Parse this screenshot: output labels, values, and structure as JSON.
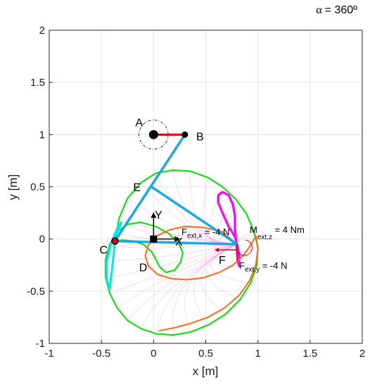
{
  "angle_label": {
    "symbol": "α",
    "value": "= 360º"
  },
  "chart_data": {
    "type": "line",
    "title": "",
    "xlabel": "x [m]",
    "ylabel": "y [m]",
    "xlim": [
      -1,
      2
    ],
    "ylim": [
      -1,
      2
    ],
    "xticks": [
      "-1",
      "-0.5",
      "0",
      "0.5",
      "1",
      "1.5",
      "2"
    ],
    "yticks": [
      "-1",
      "-0.5",
      "0",
      "0.5",
      "1",
      "1.5",
      "2"
    ],
    "grid": true,
    "points": [
      {
        "label": "A",
        "x": 0.0,
        "y": 1.0
      },
      {
        "label": "B",
        "x": 0.3,
        "y": 1.0
      },
      {
        "label": "E",
        "x": -0.02,
        "y": 0.5
      },
      {
        "label": "C",
        "x": -0.37,
        "y": -0.02
      },
      {
        "label": "D",
        "x": 0.05,
        "y": -0.12
      },
      {
        "label": "F",
        "x": 0.8,
        "y": -0.05
      }
    ],
    "frame_labels": {
      "x": "X",
      "y": "Y"
    },
    "annotations": {
      "fext_x": {
        "main": "F",
        "sub": "ext,x",
        "tail": " = -4 N"
      },
      "fext_y": {
        "main": "F",
        "sub": "ext,y",
        "tail": " = -4 N"
      },
      "mext_z": {
        "main": "M",
        "sub": "ext,z",
        "tail": " = 4 Nm"
      }
    },
    "series": [
      {
        "color": "#00e000",
        "x": [
          -0.37,
          -0.33,
          -0.25,
          -0.12,
          0.02,
          0.18,
          0.35,
          0.52,
          0.66,
          0.79,
          0.89,
          0.96,
          1.0,
          0.99,
          0.93,
          0.83,
          0.69,
          0.53,
          0.36,
          0.19,
          0.03,
          -0.12,
          -0.25,
          -0.35,
          -0.42,
          -0.46,
          -0.46,
          -0.42,
          -0.35,
          -0.25,
          -0.12,
          0.02,
          0.15,
          0.24,
          0.28,
          0.26,
          0.2,
          0.12,
          0.06,
          0.02,
          -0.02,
          -0.1,
          -0.2,
          -0.3,
          -0.37
        ],
        "y": [
          -0.02,
          0.2,
          0.39,
          0.54,
          0.63,
          0.66,
          0.65,
          0.59,
          0.5,
          0.38,
          0.24,
          0.08,
          -0.08,
          -0.25,
          -0.42,
          -0.58,
          -0.72,
          -0.82,
          -0.89,
          -0.92,
          -0.91,
          -0.86,
          -0.78,
          -0.66,
          -0.52,
          -0.37,
          -0.2,
          -0.05,
          0.07,
          0.14,
          0.16,
          0.12,
          0.05,
          -0.04,
          -0.13,
          -0.22,
          -0.3,
          -0.32,
          -0.27,
          -0.19,
          -0.12,
          -0.05,
          -0.02,
          -0.01,
          -0.02
        ]
      },
      {
        "color": "#00e5f0",
        "x": [
          -0.37,
          -0.36,
          -0.33,
          -0.31,
          -0.34,
          -0.41,
          -0.45,
          -0.45,
          -0.42,
          -0.39,
          -0.37
        ],
        "y": [
          -0.02,
          0.03,
          0.1,
          0.16,
          0.12,
          -0.05,
          -0.22,
          -0.38,
          -0.48,
          -0.22,
          -0.02
        ]
      },
      {
        "color": "#ff00ff",
        "x": [
          0.8,
          0.78,
          0.72,
          0.66,
          0.62,
          0.62,
          0.66,
          0.72,
          0.76,
          0.78,
          0.78,
          0.79,
          0.8,
          0.81,
          0.82,
          0.82,
          0.8
        ],
        "y": [
          -0.05,
          0.02,
          0.12,
          0.25,
          0.35,
          0.42,
          0.45,
          0.42,
          0.33,
          0.22,
          0.1,
          0.0,
          -0.12,
          -0.22,
          -0.26,
          -0.15,
          -0.05
        ]
      },
      {
        "color": "#ff6a1a",
        "x": [
          0.8,
          0.66,
          0.48,
          0.3,
          0.16,
          0.03,
          -0.05,
          -0.08,
          -0.05,
          0.04,
          0.17,
          0.32,
          0.48,
          0.63,
          0.76,
          0.86,
          0.93,
          0.98,
          1.0,
          0.98,
          0.92,
          0.82,
          0.68,
          0.52,
          0.35,
          0.2,
          0.1,
          0.05
        ],
        "y": [
          -0.05,
          0.07,
          0.11,
          0.12,
          0.09,
          0.03,
          -0.06,
          -0.16,
          -0.26,
          -0.34,
          -0.38,
          -0.39,
          -0.37,
          -0.32,
          -0.25,
          -0.16,
          -0.06,
          0.03,
          -0.1,
          -0.25,
          -0.4,
          -0.54,
          -0.66,
          -0.75,
          -0.81,
          -0.85,
          -0.87,
          -0.88
        ]
      }
    ]
  }
}
